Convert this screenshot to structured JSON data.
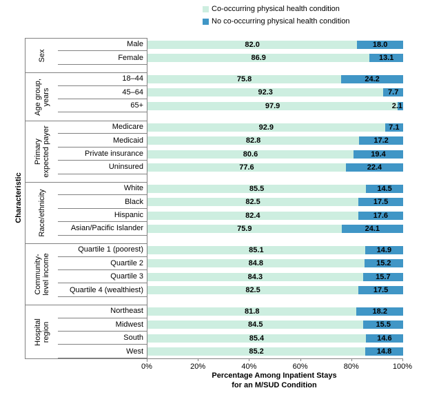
{
  "legend": {
    "items": [
      {
        "label": "Co-occurring physical health condition",
        "color": "#cdeee0"
      },
      {
        "label": "No co-occurring physical health condition",
        "color": "#4096c6"
      }
    ]
  },
  "axes": {
    "y_title": "Characteristic",
    "x_title_line1": "Percentage Among Inpatient Stays",
    "x_title_line2": "for an M/SUD Condition",
    "x_ticks": [
      "0%",
      "20%",
      "40%",
      "60%",
      "80%",
      "100%"
    ]
  },
  "colors": {
    "co_occurring": "#cdeee0",
    "no_co_occurring": "#4096c6",
    "line": "#808080",
    "value_text": "#000000"
  },
  "chart_data": {
    "type": "bar",
    "orientation": "horizontal",
    "stacked": true,
    "xlim": [
      0,
      100
    ],
    "xlabel": "Percentage Among Inpatient Stays for an M/SUD Condition",
    "ylabel": "Characteristic",
    "legend_position": "top",
    "series_names": [
      "Co-occurring physical health condition",
      "No co-occurring physical health condition"
    ],
    "groups": [
      {
        "label_lines": [
          "Sex"
        ],
        "rows": [
          {
            "category": "Male",
            "values": [
              82.0,
              18.0
            ]
          },
          {
            "category": "Female",
            "values": [
              86.9,
              13.1
            ]
          }
        ]
      },
      {
        "label_lines": [
          "Age group,",
          "years"
        ],
        "rows": [
          {
            "category": "18–44",
            "values": [
              75.8,
              24.2
            ]
          },
          {
            "category": "45–64",
            "values": [
              92.3,
              7.7
            ]
          },
          {
            "category": "65+",
            "values": [
              97.9,
              2.1
            ]
          }
        ]
      },
      {
        "label_lines": [
          "Primary",
          "expected payer"
        ],
        "rows": [
          {
            "category": "Medicare",
            "values": [
              92.9,
              7.1
            ]
          },
          {
            "category": "Medicaid",
            "values": [
              82.8,
              17.2
            ]
          },
          {
            "category": "Private insurance",
            "values": [
              80.6,
              19.4
            ]
          },
          {
            "category": "Uninsured",
            "values": [
              77.6,
              22.4
            ]
          }
        ]
      },
      {
        "label_lines": [
          "Race/ethnicity"
        ],
        "rows": [
          {
            "category": "White",
            "values": [
              85.5,
              14.5
            ]
          },
          {
            "category": "Black",
            "values": [
              82.5,
              17.5
            ]
          },
          {
            "category": "Hispanic",
            "values": [
              82.4,
              17.6
            ]
          },
          {
            "category": "Asian/Pacific Islander",
            "values": [
              75.9,
              24.1
            ]
          }
        ]
      },
      {
        "label_lines": [
          "Community-",
          "level income"
        ],
        "rows": [
          {
            "category": "Quartile 1 (poorest)",
            "values": [
              85.1,
              14.9
            ]
          },
          {
            "category": "Quartile 2",
            "values": [
              84.8,
              15.2
            ]
          },
          {
            "category": "Quartile 3",
            "values": [
              84.3,
              15.7
            ]
          },
          {
            "category": "Quartile 4 (wealthiest)",
            "values": [
              82.5,
              17.5
            ]
          }
        ]
      },
      {
        "label_lines": [
          "Hospital",
          "region"
        ],
        "rows": [
          {
            "category": "Northeast",
            "values": [
              81.8,
              18.2
            ]
          },
          {
            "category": "Midwest",
            "values": [
              84.5,
              15.5
            ]
          },
          {
            "category": "South",
            "values": [
              85.4,
              14.6
            ]
          },
          {
            "category": "West",
            "values": [
              85.2,
              14.8
            ]
          }
        ]
      }
    ]
  }
}
